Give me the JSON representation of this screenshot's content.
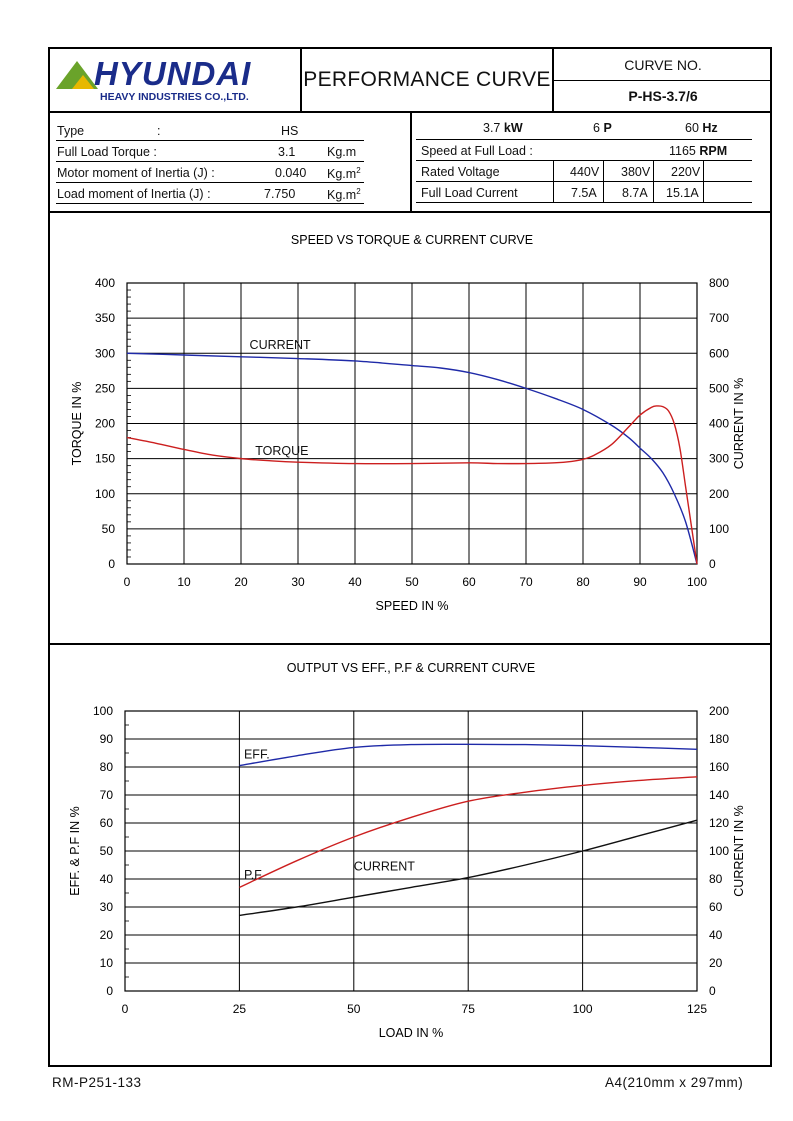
{
  "header": {
    "brand": "HYUNDAI",
    "brand_sub": "HEAVY INDUSTRIES CO.,LTD.",
    "title": "PERFORMANCE CURVE",
    "curve_no_label": "CURVE NO.",
    "curve_no": "P-HS-3.7/6"
  },
  "specs_left": {
    "type_label": "Type",
    "type_sep": ":",
    "type_value": "HS",
    "torque_label": "Full Load Torque :",
    "torque_value": "3.1",
    "torque_unit": "Kg.m",
    "motor_inertia_label": "Motor moment of Inertia (J) :",
    "motor_inertia_value": "0.040",
    "load_inertia_label": "Load moment of Inertia (J) :",
    "load_inertia_value": "7.750",
    "inertia_unit": "Kg.m",
    "inertia_unit_sup": "2"
  },
  "specs_right": {
    "power_value": "3.7",
    "power_unit": "kW",
    "poles_value": "6",
    "poles_unit": "P",
    "freq_value": "60",
    "freq_unit": "Hz",
    "speed_label": "Speed at Full Load :",
    "speed_value": "1165",
    "speed_unit": "RPM",
    "voltage_label": "Rated Voltage",
    "voltages": [
      "440V",
      "380V",
      "220V"
    ],
    "current_label": "Full Load Current",
    "currents": [
      "7.5A",
      "8.7A",
      "15.1A"
    ]
  },
  "chart_data": [
    {
      "type": "line",
      "title": "SPEED VS TORQUE & CURRENT CURVE",
      "xlabel": "SPEED IN %",
      "ylabel": "TORQUE IN %",
      "y2label": "CURRENT IN %",
      "xlim": [
        0,
        100
      ],
      "ylim": [
        0,
        400
      ],
      "y2lim": [
        0,
        800
      ],
      "xticks": [
        "0",
        "10",
        "20",
        "30",
        "40",
        "50",
        "60",
        "70",
        "80",
        "90",
        "100"
      ],
      "yticks": [
        "0",
        "50",
        "100",
        "150",
        "200",
        "250",
        "300",
        "350",
        "400"
      ],
      "y2ticks": [
        "0",
        "100",
        "200",
        "300",
        "400",
        "500",
        "600",
        "700",
        "800"
      ],
      "grid": true,
      "series": [
        {
          "name": "CURRENT",
          "axis": "right",
          "color": "#1f2aa8",
          "x": [
            0,
            10,
            20,
            30,
            40,
            50,
            55,
            60,
            65,
            70,
            75,
            80,
            85,
            88,
            90,
            92,
            94,
            96,
            98,
            100
          ],
          "y": [
            600,
            595,
            590,
            585,
            578,
            565,
            558,
            545,
            525,
            500,
            472,
            440,
            395,
            360,
            330,
            300,
            260,
            200,
            120,
            0
          ]
        },
        {
          "name": "TORQUE",
          "axis": "left",
          "color": "#cc1f1f",
          "x": [
            0,
            5,
            10,
            15,
            20,
            25,
            30,
            40,
            50,
            60,
            65,
            70,
            75,
            78,
            80,
            82,
            85,
            88,
            90,
            92,
            93,
            94,
            95,
            96,
            97,
            98,
            99,
            100
          ],
          "y": [
            180,
            172,
            163,
            155,
            150,
            147,
            145,
            143,
            143,
            144,
            143,
            143,
            144,
            146,
            149,
            155,
            170,
            195,
            212,
            223,
            225,
            224,
            218,
            200,
            165,
            110,
            55,
            0
          ]
        }
      ]
    },
    {
      "type": "line",
      "title": "OUTPUT VS EFF., P.F & CURRENT CURVE",
      "xlabel": "LOAD IN %",
      "ylabel": "EFF. & P.F IN %",
      "y2label": "CURRENT IN %",
      "xlim": [
        0,
        125
      ],
      "ylim": [
        0,
        100
      ],
      "y2lim": [
        0,
        200
      ],
      "xticks": [
        "0",
        "25",
        "50",
        "75",
        "100",
        "125"
      ],
      "yticks": [
        "0",
        "10",
        "20",
        "30",
        "40",
        "50",
        "60",
        "70",
        "80",
        "90",
        "100"
      ],
      "y2ticks": [
        "0",
        "20",
        "40",
        "60",
        "80",
        "100",
        "120",
        "140",
        "160",
        "180",
        "200"
      ],
      "grid": true,
      "series": [
        {
          "name": "EFF.",
          "axis": "left",
          "color": "#1f2aa8",
          "x": [
            25,
            37.5,
            50,
            62.5,
            75,
            87.5,
            100,
            112.5,
            125
          ],
          "y": [
            80.5,
            84,
            87,
            88,
            88.1,
            88,
            87.6,
            87,
            86.3
          ]
        },
        {
          "name": "P.F",
          "axis": "left",
          "color": "#cc1f1f",
          "x": [
            25,
            37.5,
            50,
            62.5,
            75,
            87.5,
            100,
            112.5,
            125
          ],
          "y": [
            37,
            46.5,
            55,
            62,
            67.8,
            71,
            73.4,
            75.2,
            76.5
          ]
        },
        {
          "name": "CURRENT",
          "axis": "right",
          "color": "#111111",
          "x": [
            25,
            37.5,
            50,
            62.5,
            75,
            87.5,
            100,
            112.5,
            125
          ],
          "y": [
            54,
            60,
            67,
            74,
            81,
            90,
            100,
            111,
            122
          ]
        }
      ]
    }
  ],
  "footer": {
    "left": "RM-P251-133",
    "right": "A4(210mm x 297mm)"
  }
}
